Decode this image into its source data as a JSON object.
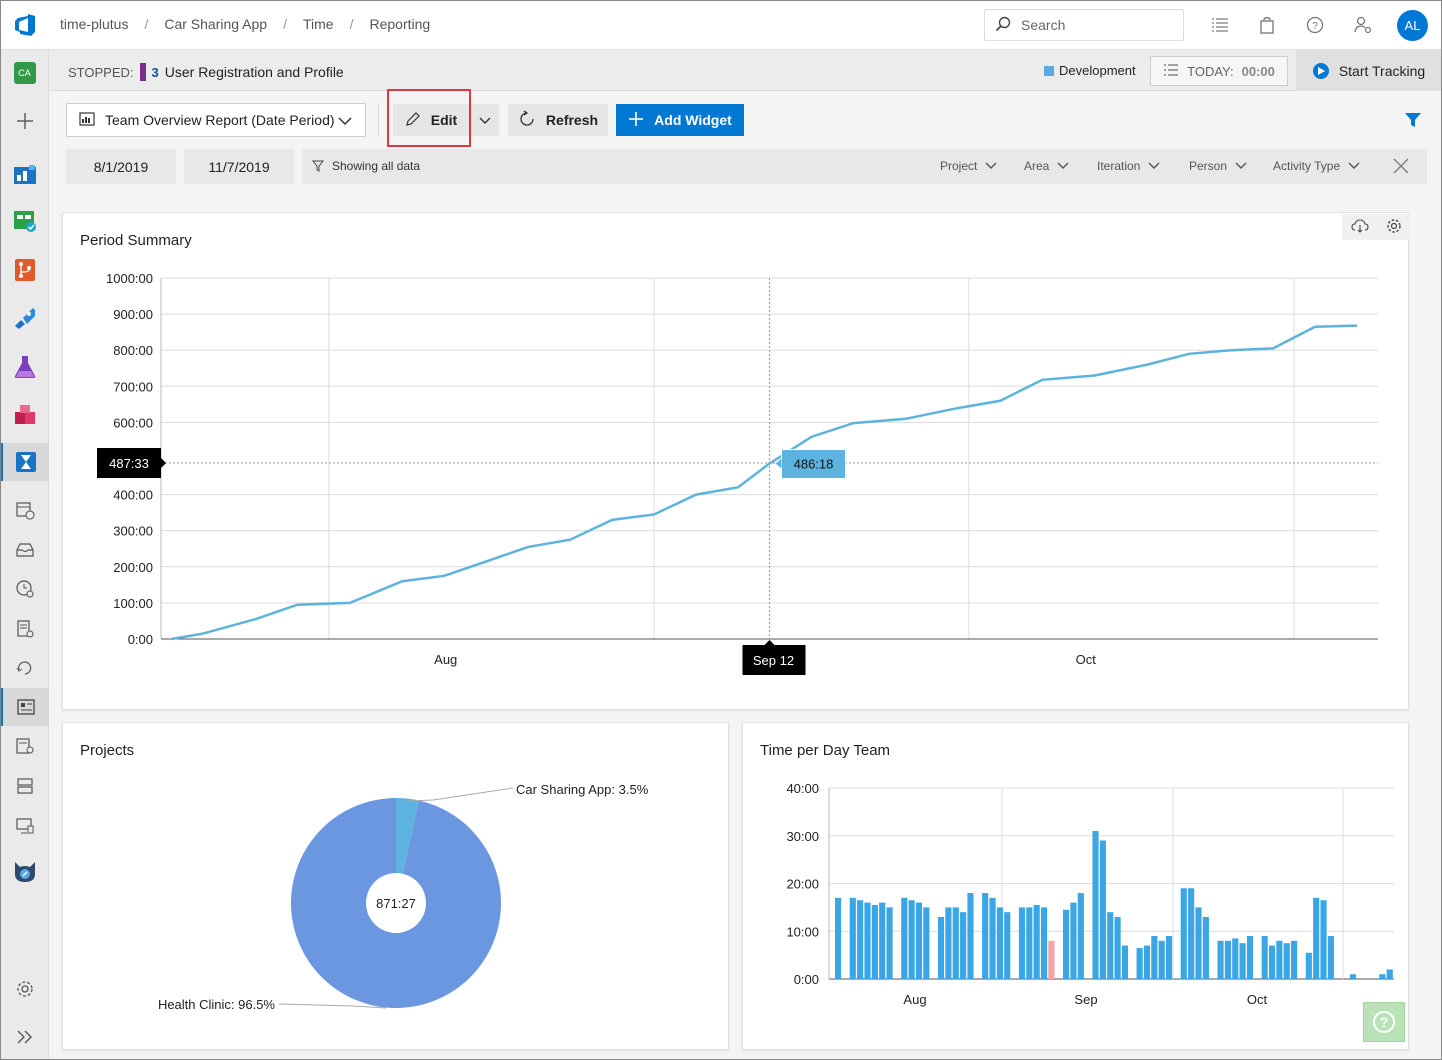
{
  "breadcrumbs": [
    "time-plutus",
    "Car Sharing App",
    "Time",
    "Reporting"
  ],
  "search": {
    "placeholder": "Search"
  },
  "user": {
    "initials": "AL"
  },
  "rail": {
    "project_badge": "CA"
  },
  "status": {
    "stopped_label": "STOPPED:",
    "task_number": "3",
    "task_name": "User Registration and Profile",
    "activity": "Development",
    "today_label": "TODAY:",
    "today_value": "00:00",
    "start_label": "Start Tracking"
  },
  "toolbar": {
    "report_name": "Team Overview Report (Date Period)",
    "edit_label": "Edit",
    "refresh_label": "Refresh",
    "add_widget_label": "Add Widget"
  },
  "filters": {
    "start_date": "8/1/2019",
    "end_date": "11/7/2019",
    "showing_text": "Showing all data",
    "dropdowns": [
      "Project",
      "Area",
      "Iteration",
      "Person",
      "Activity Type"
    ]
  },
  "colors": {
    "accent": "#0078d4",
    "line": "#5db3e0",
    "pie_main": "#6b96e0",
    "pie_small": "#5db3e0",
    "bar": "#3aa6e6",
    "bar_highlight": "#f5a3a3"
  },
  "period_summary": {
    "title": "Period Summary",
    "y_tick_labels": [
      "0:00",
      "100:00",
      "200:00",
      "300:00",
      "400:00",
      "487:33",
      "600:00",
      "700:00",
      "800:00",
      "900:00",
      "1000:00"
    ],
    "x_month_labels": [
      "Aug",
      "Sep",
      "Oct"
    ],
    "crosshair_y_label": "487:33",
    "crosshair_x_label": "Sep 12",
    "tooltip": "486:18"
  },
  "projects": {
    "title": "Projects",
    "total": "871:27",
    "slice_labels": [
      "Car Sharing App: 3.5%",
      "Health Clinic: 96.5%"
    ]
  },
  "time_per_day": {
    "title": "Time per Day Team",
    "y_tick_labels": [
      "0:00",
      "10:00",
      "20:00",
      "30:00",
      "40:00"
    ],
    "x_month_labels": [
      "Aug",
      "Sep",
      "Oct"
    ]
  },
  "chart_data": [
    {
      "type": "line",
      "title": "Period Summary",
      "xlabel": "",
      "ylabel": "",
      "x": [
        "2019-07-17",
        "2019-07-20",
        "2019-07-25",
        "2019-07-29",
        "2019-08-03",
        "2019-08-08",
        "2019-08-12",
        "2019-08-16",
        "2019-08-20",
        "2019-08-24",
        "2019-08-28",
        "2019-09-01",
        "2019-09-05",
        "2019-09-09",
        "2019-09-12",
        "2019-09-16",
        "2019-09-20",
        "2019-09-25",
        "2019-09-30",
        "2019-10-04",
        "2019-10-08",
        "2019-10-13",
        "2019-10-18",
        "2019-10-22",
        "2019-10-26",
        "2019-10-30",
        "2019-11-03",
        "2019-11-07"
      ],
      "values": [
        0,
        15,
        55,
        95,
        100,
        160,
        175,
        215,
        255,
        275,
        330,
        345,
        400,
        420,
        486,
        560,
        598,
        610,
        640,
        660,
        718,
        730,
        760,
        790,
        800,
        805,
        865,
        868
      ],
      "ylim": [
        0,
        1000
      ],
      "grid": true
    },
    {
      "type": "pie",
      "title": "Projects",
      "labels": [
        "Car Sharing App",
        "Health Clinic"
      ],
      "values": [
        3.5,
        96.5
      ],
      "total_label": "871:27"
    },
    {
      "type": "bar",
      "title": "Time per Day Team",
      "ylim": [
        0,
        40
      ],
      "values": [
        17,
        0,
        17,
        16.5,
        16,
        15.5,
        16,
        15,
        0,
        17,
        16.5,
        16,
        15,
        0,
        13,
        15,
        15,
        14,
        18,
        0,
        18,
        17,
        15,
        14,
        0,
        15,
        15,
        15.5,
        15,
        8,
        0,
        14.5,
        16,
        18,
        0,
        31,
        29,
        14,
        13,
        7,
        0,
        6.5,
        7,
        9,
        8,
        9,
        0,
        19,
        19,
        15,
        13,
        0,
        8,
        8,
        8.5,
        7.5,
        9,
        0,
        9,
        7,
        8,
        7.5,
        8,
        0,
        5.5,
        17,
        16.5,
        9,
        0,
        0,
        1,
        0,
        0,
        0,
        1,
        2
      ],
      "highlight_index": 29
    }
  ]
}
